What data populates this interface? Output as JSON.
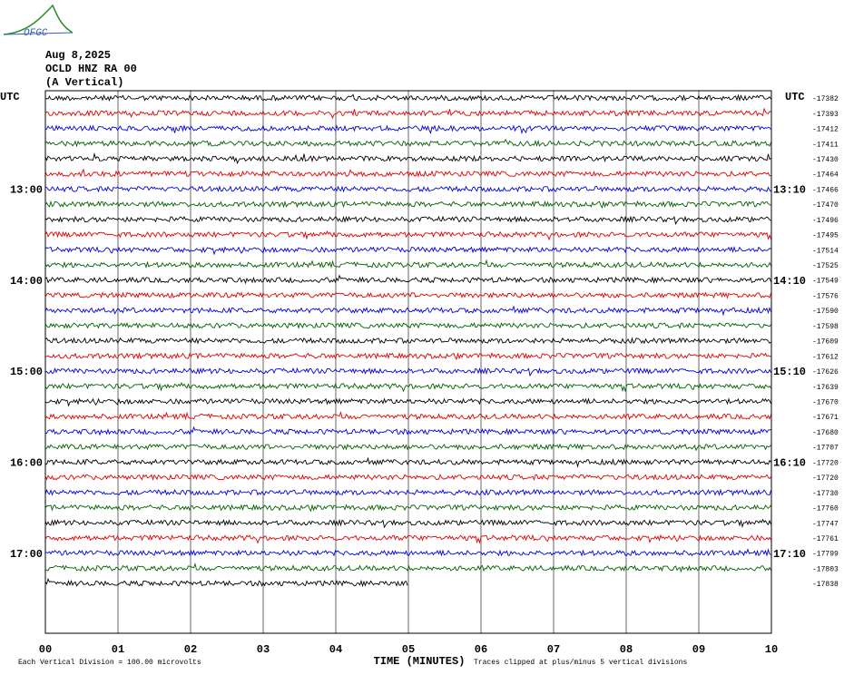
{
  "header": {
    "logo": "OFGC",
    "date": "Aug 8,2025",
    "station": "OCLD HNZ RA 00",
    "component": "(A Vertical)"
  },
  "left_labels": {
    "top": "UTC",
    "hours": [
      "13:00",
      "14:00",
      "15:00",
      "16:00",
      "17:00"
    ]
  },
  "right_labels": {
    "top": "UTC",
    "hours": [
      "13:10",
      "14:10",
      "15:10",
      "16:10",
      "17:10"
    ]
  },
  "trace_offsets": [
    -17382,
    -17393,
    -17412,
    -17411,
    -17430,
    -17464,
    -17466,
    -17470,
    -17496,
    -17495,
    -17514,
    -17525,
    -17549,
    -17576,
    -17590,
    -17598,
    -17609,
    -17612,
    -17626,
    -17639,
    -17670,
    -17671,
    -17680,
    -17707,
    -17720,
    -17720,
    -17730,
    -17760,
    -17747,
    -17761,
    -17799,
    -17803,
    -17838
  ],
  "x_ticks": [
    "00",
    "01",
    "02",
    "03",
    "04",
    "05",
    "06",
    "07",
    "08",
    "09",
    "10"
  ],
  "x_label": "TIME (MINUTES)",
  "footer": {
    "scale": "Each Vertical Division =  100.00 microvolts",
    "clip": "Traces clipped at plus/minus 5 vertical divisions"
  }
}
